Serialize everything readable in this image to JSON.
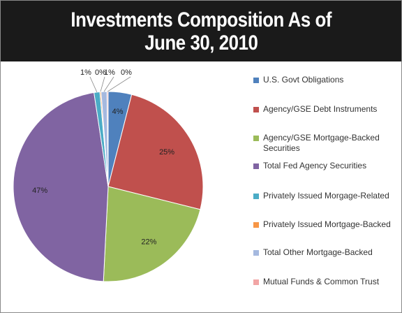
{
  "header": {
    "title_line1": "Investments Composition As of",
    "title_line2": "June 30, 2010"
  },
  "chart_data": {
    "type": "pie",
    "title": "Investments Composition As of June 30, 2010",
    "slices": [
      {
        "label": "U.S. Govt Obligations",
        "value": 4,
        "display": "4%",
        "color": "#4f81bd"
      },
      {
        "label": "Agency/GSE Debt Instruments",
        "value": 25,
        "display": "25%",
        "color": "#c0504d"
      },
      {
        "label": "Agency/GSE Mortgage-Backed Securities",
        "value": 22,
        "display": "22%",
        "color": "#9bbb59"
      },
      {
        "label": "Total Fed Agency Securities",
        "value": 47,
        "display": "47%",
        "color": "#8064a2"
      },
      {
        "label": "Privately Issued Morgage-Related",
        "value": 1,
        "display": "1%",
        "color": "#4bacc6"
      },
      {
        "label": "Privately Issued Mortgage-Backed",
        "value": 0.2,
        "display": "0%",
        "color": "#f79646"
      },
      {
        "label": "Total Other Mortgage-Backed",
        "value": 1,
        "display": "1%",
        "color": "#a5b9df"
      },
      {
        "label": "Mutual Funds & Common Trust",
        "value": 0.2,
        "display": "0%",
        "color": "#f2a5a5"
      }
    ],
    "legend_position": "right"
  },
  "legend": {
    "items": [
      {
        "line1": "U.S. Govt Obligations",
        "line2": ""
      },
      {
        "line1": "Agency/GSE Debt Instruments",
        "line2": ""
      },
      {
        "line1": "Agency/GSE Mortgage-Backed",
        "line2": "Securities"
      },
      {
        "line1": "Total Fed Agency Securities",
        "line2": ""
      },
      {
        "line1": "Privately Issued Morgage-Related",
        "line2": ""
      },
      {
        "line1": "Privately Issued Mortgage-Backed",
        "line2": ""
      },
      {
        "line1": "Total Other Mortgage-Backed",
        "line2": ""
      },
      {
        "line1": "Mutual Funds & Common Trust",
        "line2": ""
      }
    ]
  }
}
